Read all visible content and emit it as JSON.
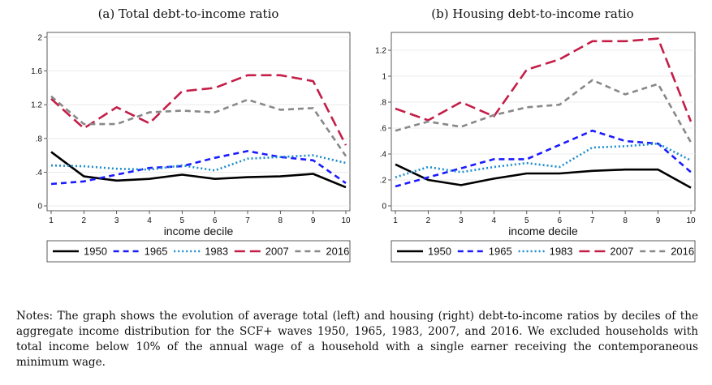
{
  "chart_data": [
    {
      "type": "line",
      "title": "(a) Total debt-to-income ratio",
      "xlabel": "income decile",
      "ylabel": "",
      "x": [
        1,
        2,
        3,
        4,
        5,
        6,
        7,
        8,
        9,
        10
      ],
      "ylim": [
        0,
        2
      ],
      "yticks": [
        0,
        0.4,
        0.8,
        1.2,
        1.6,
        2
      ],
      "ytick_labels": [
        "0",
        ".4",
        ".8",
        "1.2",
        "1.6",
        "2"
      ],
      "grid": true,
      "legend": "bottom",
      "series": [
        {
          "name": "1950",
          "color": "#000000",
          "dash": "solid",
          "values": [
            0.64,
            0.35,
            0.3,
            0.32,
            0.37,
            0.32,
            0.34,
            0.35,
            0.38,
            0.22
          ]
        },
        {
          "name": "1965",
          "color": "#1a1aff",
          "dash": "dash",
          "values": [
            0.26,
            0.29,
            0.37,
            0.45,
            0.47,
            0.57,
            0.65,
            0.58,
            0.54,
            0.27
          ]
        },
        {
          "name": "1983",
          "color": "#1a8ccc",
          "dash": "dot",
          "values": [
            0.48,
            0.47,
            0.44,
            0.43,
            0.48,
            0.42,
            0.56,
            0.58,
            0.6,
            0.51
          ]
        },
        {
          "name": "2007",
          "color": "#c41e48",
          "dash": "longdash",
          "values": [
            1.27,
            0.92,
            1.17,
            0.98,
            1.36,
            1.4,
            1.55,
            1.55,
            1.48,
            0.72
          ]
        },
        {
          "name": "2016",
          "color": "#888888",
          "dash": "dash",
          "values": [
            1.3,
            0.97,
            0.97,
            1.11,
            1.13,
            1.11,
            1.26,
            1.14,
            1.16,
            0.59
          ]
        }
      ]
    },
    {
      "type": "line",
      "title": "(b) Housing debt-to-income ratio",
      "xlabel": "income decile",
      "ylabel": "",
      "x": [
        1,
        2,
        3,
        4,
        5,
        6,
        7,
        8,
        9,
        10
      ],
      "ylim": [
        0,
        1.3
      ],
      "yticks": [
        0,
        0.2,
        0.4,
        0.6,
        0.8,
        1,
        1.2
      ],
      "ytick_labels": [
        "0",
        ".2",
        ".4",
        ".6",
        ".8",
        "1",
        "1.2"
      ],
      "grid": true,
      "legend": "bottom",
      "series": [
        {
          "name": "1950",
          "color": "#000000",
          "dash": "solid",
          "values": [
            0.32,
            0.2,
            0.16,
            0.21,
            0.25,
            0.25,
            0.27,
            0.28,
            0.28,
            0.14
          ]
        },
        {
          "name": "1965",
          "color": "#1a1aff",
          "dash": "dash",
          "values": [
            0.15,
            0.22,
            0.29,
            0.36,
            0.36,
            0.47,
            0.58,
            0.5,
            0.48,
            0.26
          ]
        },
        {
          "name": "1983",
          "color": "#1a8ccc",
          "dash": "dot",
          "values": [
            0.22,
            0.3,
            0.26,
            0.3,
            0.33,
            0.3,
            0.45,
            0.46,
            0.48,
            0.35
          ]
        },
        {
          "name": "2007",
          "color": "#c41e48",
          "dash": "longdash",
          "values": [
            0.75,
            0.66,
            0.8,
            0.69,
            1.05,
            1.13,
            1.27,
            1.27,
            1.29,
            0.65
          ]
        },
        {
          "name": "2016",
          "color": "#888888",
          "dash": "dash",
          "values": [
            0.58,
            0.65,
            0.61,
            0.7,
            0.76,
            0.78,
            0.97,
            0.86,
            0.94,
            0.49
          ]
        }
      ]
    }
  ],
  "notes": "Notes: The graph shows the evolution of average total (left) and housing (right) debt-to-income ratios by deciles of the aggregate income distribution for the SCF+ waves 1950, 1965, 1983, 2007, and 2016. We excluded households with total income below 10% of the annual wage of a household with a single earner receiving the contemporaneous minimum wage."
}
